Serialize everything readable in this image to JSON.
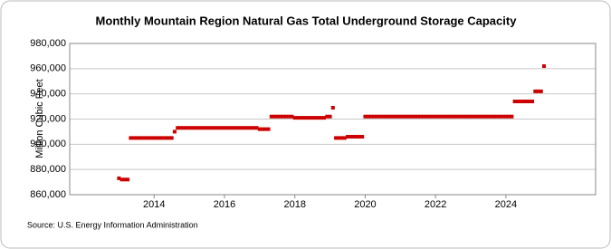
{
  "chart_data": {
    "type": "scatter",
    "title": "Monthly Mountain Region Natural Gas Total Underground Storage Capacity",
    "y_label": "Million Cubic Feet",
    "source": "Source: U.S. Energy Information Administration",
    "color": "#cc0000",
    "grid": true,
    "xlim": [
      2011.6,
      2026.55
    ],
    "xticks": [
      2014,
      2016,
      2018,
      2020,
      2022,
      2024
    ],
    "ylim": [
      860000,
      980000
    ],
    "yticks": [
      {
        "value": 860000,
        "label": "860,000"
      },
      {
        "value": 880000,
        "label": "880,000"
      },
      {
        "value": 900000,
        "label": "900,000"
      },
      {
        "value": 920000,
        "label": "920,000"
      },
      {
        "value": 940000,
        "label": "940,000"
      },
      {
        "value": 960000,
        "label": "960,000"
      },
      {
        "value": 980000,
        "label": "980,000"
      }
    ],
    "x": [
      2013.0,
      2013.083,
      2013.167,
      2013.25,
      2013.333,
      2013.417,
      2013.5,
      2013.583,
      2013.667,
      2013.75,
      2013.833,
      2013.917,
      2014.0,
      2014.083,
      2014.167,
      2014.25,
      2014.333,
      2014.417,
      2014.5,
      2014.583,
      2014.667,
      2014.75,
      2014.833,
      2014.917,
      2015.0,
      2015.083,
      2015.167,
      2015.25,
      2015.333,
      2015.417,
      2015.5,
      2015.583,
      2015.667,
      2015.75,
      2015.833,
      2015.917,
      2016.0,
      2016.083,
      2016.167,
      2016.25,
      2016.333,
      2016.417,
      2016.5,
      2016.583,
      2016.667,
      2016.75,
      2016.833,
      2016.917,
      2017.0,
      2017.083,
      2017.167,
      2017.25,
      2017.333,
      2017.417,
      2017.5,
      2017.583,
      2017.667,
      2017.75,
      2017.833,
      2017.917,
      2018.0,
      2018.083,
      2018.167,
      2018.25,
      2018.333,
      2018.417,
      2018.5,
      2018.583,
      2018.667,
      2018.75,
      2018.833,
      2018.917,
      2019.0,
      2019.083,
      2019.167,
      2019.25,
      2019.333,
      2019.417,
      2019.5,
      2019.583,
      2019.667,
      2019.75,
      2019.833,
      2019.917,
      2020.0,
      2020.083,
      2020.167,
      2020.25,
      2020.333,
      2020.417,
      2020.5,
      2020.583,
      2020.667,
      2020.75,
      2020.833,
      2020.917,
      2021.0,
      2021.083,
      2021.167,
      2021.25,
      2021.333,
      2021.417,
      2021.5,
      2021.583,
      2021.667,
      2021.75,
      2021.833,
      2021.917,
      2022.0,
      2022.083,
      2022.167,
      2022.25,
      2022.333,
      2022.417,
      2022.5,
      2022.583,
      2022.667,
      2022.75,
      2022.833,
      2022.917,
      2023.0,
      2023.083,
      2023.167,
      2023.25,
      2023.333,
      2023.417,
      2023.5,
      2023.583,
      2023.667,
      2023.75,
      2023.833,
      2023.917,
      2024.0,
      2024.083,
      2024.167,
      2024.25,
      2024.333,
      2024.417,
      2024.5,
      2024.583,
      2024.667,
      2024.75,
      2024.833,
      2024.917,
      2025.0,
      2025.083
    ],
    "values": [
      873000,
      872000,
      872000,
      872000,
      905000,
      905000,
      905000,
      905000,
      905000,
      905000,
      905000,
      905000,
      905000,
      905000,
      905000,
      905000,
      905000,
      905000,
      905000,
      910000,
      913000,
      913000,
      913000,
      913000,
      913000,
      913000,
      913000,
      913000,
      913000,
      913000,
      913000,
      913000,
      913000,
      913000,
      913000,
      913000,
      913000,
      913000,
      913000,
      913000,
      913000,
      913000,
      913000,
      913000,
      913000,
      913000,
      913000,
      913000,
      912000,
      912000,
      912000,
      912000,
      922000,
      922000,
      922000,
      922000,
      922000,
      922000,
      922000,
      922000,
      921000,
      921000,
      921000,
      921000,
      921000,
      921000,
      921000,
      921000,
      921000,
      921000,
      921000,
      922000,
      922000,
      929000,
      905000,
      905000,
      905000,
      905000,
      906000,
      906000,
      906000,
      906000,
      906000,
      906000,
      922000,
      922000,
      922000,
      922000,
      922000,
      922000,
      922000,
      922000,
      922000,
      922000,
      922000,
      922000,
      922000,
      922000,
      922000,
      922000,
      922000,
      922000,
      922000,
      922000,
      922000,
      922000,
      922000,
      922000,
      922000,
      922000,
      922000,
      922000,
      922000,
      922000,
      922000,
      922000,
      922000,
      922000,
      922000,
      922000,
      922000,
      922000,
      922000,
      922000,
      922000,
      922000,
      922000,
      922000,
      922000,
      922000,
      922000,
      922000,
      922000,
      922000,
      922000,
      934000,
      934000,
      934000,
      934000,
      934000,
      934000,
      934000,
      942000,
      942000,
      942000,
      962000
    ]
  }
}
